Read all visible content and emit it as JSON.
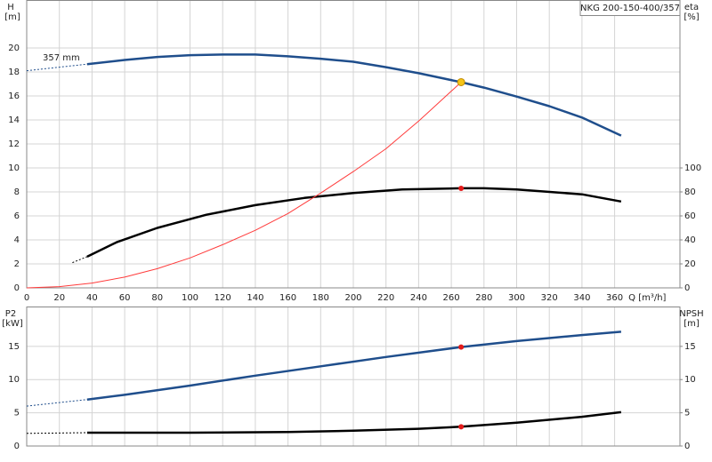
{
  "chart_data": [
    {
      "type": "line",
      "title": "NKG 200-150-400/357",
      "annotation": "357 mm",
      "xlabel": "Q [m³/h]",
      "ylabel": "H",
      "yunit": "[m]",
      "y2label": "eta",
      "y2unit": "[%]",
      "xlim": [
        0,
        400
      ],
      "xticks": [
        0,
        20,
        40,
        60,
        80,
        100,
        120,
        140,
        160,
        180,
        200,
        220,
        240,
        260,
        280,
        300,
        320,
        340,
        360
      ],
      "ylim": [
        0,
        24
      ],
      "yticks": [
        0,
        2,
        4,
        6,
        8,
        10,
        12,
        14,
        16,
        18,
        20
      ],
      "y2lim": [
        0,
        240
      ],
      "y2ticks": [
        0,
        20,
        40,
        60,
        80,
        100
      ],
      "grid": true,
      "xtick_labels": true,
      "series": [
        {
          "color": "#1f4e8c",
          "width": 2.5,
          "dashed": true,
          "x": [
            0,
            37
          ],
          "values": [
            18.1,
            18.65
          ]
        },
        {
          "color": "#1f4e8c",
          "width": 2.5,
          "dashed": false,
          "x": [
            37,
            60,
            80,
            100,
            120,
            140,
            160,
            180,
            200,
            220,
            240,
            266,
            280,
            300,
            320,
            340,
            364
          ],
          "values": [
            18.65,
            19.0,
            19.25,
            19.4,
            19.45,
            19.45,
            19.3,
            19.1,
            18.85,
            18.4,
            17.9,
            17.15,
            16.7,
            15.95,
            15.15,
            14.2,
            12.7
          ]
        },
        {
          "color": "#000000",
          "width": 2.5,
          "dashed": true,
          "axis": "y2",
          "x": [
            28,
            37
          ],
          "values": [
            21,
            26
          ]
        },
        {
          "color": "#000000",
          "width": 2.5,
          "dashed": false,
          "axis": "y2",
          "x": [
            37,
            55,
            80,
            110,
            140,
            170,
            200,
            230,
            266,
            280,
            300,
            340,
            364
          ],
          "values": [
            26,
            38,
            50,
            61,
            69,
            75,
            79,
            82,
            83,
            83,
            82,
            78,
            72
          ]
        },
        {
          "color": "#ff3b3b",
          "width": 1,
          "dashed": false,
          "x": [
            0,
            20,
            40,
            60,
            80,
            100,
            120,
            140,
            160,
            180,
            200,
            220,
            240,
            266
          ],
          "values": [
            0,
            0.1,
            0.4,
            0.9,
            1.6,
            2.5,
            3.6,
            4.8,
            6.2,
            7.9,
            9.7,
            11.6,
            13.9,
            17.15
          ]
        }
      ],
      "points": [
        {
          "x": 266,
          "y": 17.15,
          "color": "#f5c518"
        },
        {
          "x": 266,
          "y": 83,
          "axis": "y2",
          "color": "#e31a1a"
        }
      ]
    },
    {
      "type": "line",
      "ylabel": "P2",
      "yunit": "[kW]",
      "y2label": "NPSH",
      "y2unit": "[m]",
      "xlim": [
        0,
        400
      ],
      "xticks": [
        0,
        20,
        40,
        60,
        80,
        100,
        120,
        140,
        160,
        180,
        200,
        220,
        240,
        260,
        280,
        300,
        320,
        340,
        360
      ],
      "ylim": [
        0,
        21
      ],
      "yticks": [
        0,
        5,
        10,
        15
      ],
      "y2lim": [
        0,
        21
      ],
      "y2ticks": [
        0,
        5,
        10,
        15
      ],
      "grid": true,
      "xtick_labels": false,
      "series": [
        {
          "color": "#1f4e8c",
          "width": 2.5,
          "dashed": true,
          "x": [
            0,
            37
          ],
          "values": [
            6.0,
            7.0
          ]
        },
        {
          "color": "#1f4e8c",
          "width": 2.5,
          "dashed": false,
          "x": [
            37,
            60,
            100,
            140,
            180,
            220,
            266,
            300,
            340,
            364
          ],
          "values": [
            7.0,
            7.7,
            9.1,
            10.6,
            12.0,
            13.4,
            14.9,
            15.8,
            16.7,
            17.2
          ]
        },
        {
          "color": "#000000",
          "width": 2.5,
          "dashed": true,
          "axis": "y2",
          "x": [
            0,
            37
          ],
          "values": [
            1.9,
            2.0
          ]
        },
        {
          "color": "#000000",
          "width": 2.5,
          "dashed": false,
          "axis": "y2",
          "x": [
            37,
            100,
            160,
            200,
            240,
            266,
            300,
            340,
            364
          ],
          "values": [
            2.0,
            2.0,
            2.1,
            2.3,
            2.6,
            2.9,
            3.5,
            4.4,
            5.1
          ]
        }
      ],
      "points": [
        {
          "x": 266,
          "y": 14.9,
          "color": "#e31a1a"
        },
        {
          "x": 266,
          "y": 2.9,
          "axis": "y2",
          "color": "#e31a1a"
        }
      ]
    }
  ]
}
